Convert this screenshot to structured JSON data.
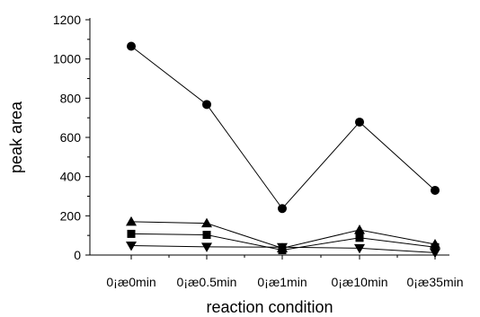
{
  "chart_data": {
    "type": "line",
    "title": "",
    "xlabel": "reaction condition",
    "ylabel": "peak area",
    "categories": [
      "0¡æ0min",
      "0¡æ0.5min",
      "0¡æ1min",
      "0¡æ10min",
      "0¡æ35min"
    ],
    "ylim": [
      0,
      1200
    ],
    "yticks": [
      0,
      200,
      400,
      600,
      800,
      1000,
      1200
    ],
    "grid": false,
    "legend": "none",
    "series": [
      {
        "marker": "circle",
        "values": [
          1065,
          768,
          237,
          678,
          330
        ]
      },
      {
        "marker": "triangle-up",
        "values": [
          170,
          162,
          35,
          128,
          55
        ]
      },
      {
        "marker": "square",
        "values": [
          108,
          103,
          25,
          88,
          40
        ]
      },
      {
        "marker": "triangle-down",
        "values": [
          48,
          42,
          40,
          35,
          12
        ]
      }
    ]
  }
}
